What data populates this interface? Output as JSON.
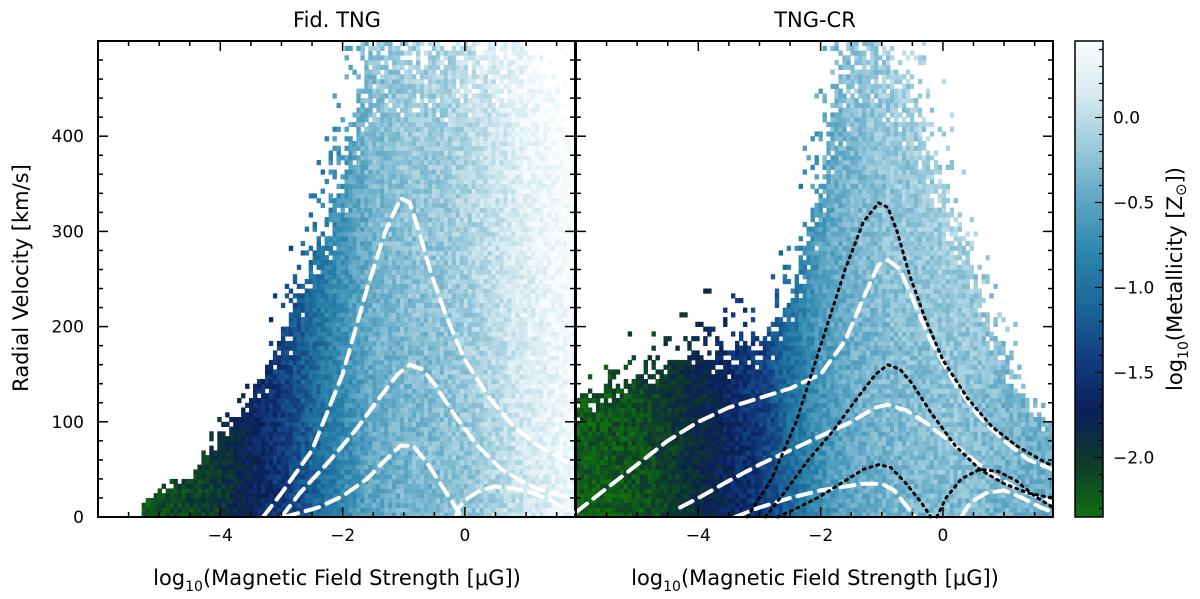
{
  "chart_data": [
    {
      "type": "heatmap",
      "title": "Fid. TNG",
      "xlabel_prefix": "log",
      "xlabel_sub": "10",
      "xlabel_rest": "(Magnetic Field Strength [μG])",
      "ylabel": "Radial Velocity [km/s]",
      "xlim": [
        -6,
        1.8
      ],
      "ylim": [
        0,
        500
      ],
      "xticks": [
        -4,
        -2,
        0
      ],
      "xtick_labels": [
        "−4",
        "−2",
        "0"
      ],
      "yticks": [
        0,
        100,
        200,
        300,
        400
      ],
      "ytick_labels": [
        "0",
        "100",
        "200",
        "300",
        "400"
      ],
      "metallicity_ridge": {
        "x": [
          -5.2,
          -4,
          -3,
          -2,
          -1.5,
          -1,
          -0.5,
          0,
          0.5,
          1,
          1.8
        ],
        "log_Z": [
          -2.2,
          -2.0,
          -1.5,
          -0.8,
          -0.5,
          -0.4,
          -0.35,
          -0.25,
          -0.1,
          0.1,
          0.35
        ]
      },
      "distribution_envelope": {
        "x": [
          -5.3,
          -4.5,
          -4,
          -3.5,
          -3,
          -2.5,
          -2,
          -1.7,
          -1.5,
          -1.2,
          -1,
          -0.5,
          0,
          0.5,
          1,
          1.5,
          1.8
        ],
        "upper_velocity": [
          15,
          40,
          85,
          120,
          190,
          270,
          360,
          460,
          500,
          500,
          500,
          500,
          500,
          500,
          500,
          440,
          380
        ]
      },
      "contours": [
        {
          "style": "dashed",
          "color": "#ffffff",
          "x": [
            -3.3,
            -3.0,
            -2.5,
            -2.0,
            -1.6,
            -1.3,
            -1.05,
            -0.9,
            -0.75,
            -0.55,
            -0.3,
            0.0,
            0.4,
            0.8,
            1.2,
            1.6,
            1.75
          ],
          "y": [
            0,
            25,
            70,
            150,
            240,
            300,
            335,
            330,
            300,
            255,
            210,
            165,
            125,
            95,
            75,
            60,
            55
          ]
        },
        {
          "style": "dashed",
          "color": "#ffffff",
          "x": [
            -3.0,
            -2.7,
            -2.2,
            -1.8,
            -1.4,
            -1.1,
            -0.9,
            -0.7,
            -0.5,
            -0.2,
            0.2,
            0.6,
            1.0,
            1.4,
            1.8
          ],
          "y": [
            0,
            25,
            60,
            90,
            125,
            150,
            160,
            155,
            140,
            110,
            75,
            50,
            35,
            25,
            20
          ]
        },
        {
          "style": "dashed",
          "color": "#ffffff",
          "x": [
            -2.95,
            -2.4,
            -2.0,
            -1.6,
            -1.3,
            -1.05,
            -0.85,
            -0.6,
            -0.35,
            -0.15,
            -0.05
          ],
          "y": [
            0,
            10,
            22,
            40,
            60,
            75,
            75,
            55,
            30,
            10,
            0
          ]
        },
        {
          "style": "dashed",
          "color": "#ffffff",
          "x": [
            -0.15,
            -0.1,
            0.05,
            0.25,
            0.5,
            0.8,
            1.1,
            1.4,
            1.6,
            1.8
          ],
          "y": [
            0,
            10,
            20,
            28,
            32,
            30,
            25,
            18,
            10,
            5
          ]
        }
      ]
    },
    {
      "type": "heatmap",
      "title": "TNG-CR",
      "xlabel_prefix": "log",
      "xlabel_sub": "10",
      "xlabel_rest": "(Magnetic Field Strength [μG])",
      "xlim": [
        -6,
        1.8
      ],
      "ylim": [
        0,
        500
      ],
      "xticks": [
        -4,
        -2,
        0
      ],
      "xtick_labels": [
        "−4",
        "−2",
        "0"
      ],
      "metallicity_ridge": {
        "x": [
          -6,
          -5,
          -4,
          -3,
          -2.5,
          -2,
          -1.5,
          -1,
          -0.5,
          0,
          0.5,
          1,
          1.8
        ],
        "log_Z": [
          -2.3,
          -2.2,
          -1.9,
          -1.5,
          -1.1,
          -0.7,
          -0.5,
          -0.4,
          -0.35,
          -0.3,
          -0.3,
          -0.4,
          -0.45
        ]
      },
      "distribution_envelope": {
        "x": [
          -6,
          -5,
          -4,
          -3.5,
          -3,
          -2.5,
          -2,
          -1.7,
          -1.5,
          -1.2,
          -1,
          -0.5,
          0,
          0.5,
          1,
          1.5,
          1.8
        ],
        "upper_velocity": [
          120,
          150,
          175,
          175,
          185,
          230,
          350,
          470,
          500,
          500,
          500,
          450,
          350,
          260,
          170,
          110,
          95
        ]
      },
      "contours": [
        {
          "style": "dashed",
          "color": "#ffffff",
          "x": [
            -6.0,
            -5.5,
            -5.0,
            -4.5,
            -4.0,
            -3.5,
            -3.0,
            -2.5,
            -2.0,
            -1.6,
            -1.3,
            -1.05,
            -0.9,
            -0.7,
            -0.5,
            -0.2,
            0.2,
            0.6,
            1.0,
            1.4,
            1.8
          ],
          "y": [
            5,
            30,
            55,
            80,
            100,
            115,
            125,
            135,
            150,
            185,
            230,
            265,
            270,
            260,
            230,
            185,
            140,
            105,
            80,
            60,
            50
          ]
        },
        {
          "style": "dashed",
          "color": "#ffffff",
          "x": [
            -4.3,
            -4.0,
            -3.5,
            -3.0,
            -2.5,
            -2.0,
            -1.5,
            -1.1,
            -0.9,
            -0.6,
            -0.3,
            0.0,
            0.4,
            0.8,
            1.2,
            1.6,
            1.8
          ],
          "y": [
            10,
            20,
            38,
            55,
            70,
            85,
            100,
            115,
            118,
            112,
            100,
            85,
            65,
            45,
            30,
            20,
            15
          ]
        },
        {
          "style": "dashed",
          "color": "#ffffff",
          "x": [
            -3.4,
            -3.0,
            -2.5,
            -2.0,
            -1.6,
            -1.3,
            -1.0,
            -0.8,
            -0.6,
            -0.45
          ],
          "y": [
            0,
            10,
            20,
            28,
            32,
            35,
            35,
            28,
            12,
            0
          ]
        },
        {
          "style": "dashed",
          "color": "#ffffff",
          "x": [
            0.3,
            0.45,
            0.7,
            1.0,
            1.3,
            1.6,
            1.8
          ],
          "y": [
            0,
            15,
            25,
            28,
            20,
            10,
            5
          ]
        },
        {
          "style": "dotted",
          "color": "#000000",
          "x": [
            -3.2,
            -2.8,
            -2.4,
            -2.0,
            -1.6,
            -1.3,
            -1.05,
            -0.9,
            -0.75,
            -0.55,
            -0.3,
            0.0,
            0.4,
            0.8,
            1.2,
            1.6,
            1.75
          ],
          "y": [
            0,
            40,
            100,
            180,
            260,
            310,
            330,
            325,
            300,
            255,
            210,
            165,
            125,
            95,
            75,
            60,
            55
          ]
        },
        {
          "style": "dotted",
          "color": "#000000",
          "x": [
            -2.9,
            -2.6,
            -2.2,
            -1.8,
            -1.4,
            -1.1,
            -0.9,
            -0.7,
            -0.5,
            -0.2,
            0.2,
            0.6,
            1.0,
            1.4,
            1.8
          ],
          "y": [
            0,
            25,
            60,
            90,
            125,
            150,
            160,
            155,
            140,
            110,
            75,
            50,
            35,
            25,
            20
          ]
        },
        {
          "style": "dotted",
          "color": "#000000",
          "x": [
            -2.7,
            -2.3,
            -2.0,
            -1.6,
            -1.3,
            -1.05,
            -0.85,
            -0.6,
            -0.35,
            -0.2
          ],
          "y": [
            0,
            12,
            22,
            38,
            50,
            55,
            52,
            35,
            15,
            0
          ]
        },
        {
          "style": "dotted",
          "color": "#000000",
          "x": [
            -0.1,
            0.05,
            0.3,
            0.6,
            0.9,
            1.2,
            1.5,
            1.8
          ],
          "y": [
            0,
            20,
            40,
            50,
            48,
            38,
            22,
            10
          ]
        }
      ]
    }
  ],
  "colorbar": {
    "label_prefix": "log",
    "label_sub": "10",
    "label_main": "(Metallicity [Z",
    "label_sun": "⊙",
    "label_close": "])",
    "range": [
      -2.35,
      0.45
    ],
    "ticks": [
      0.0,
      -0.5,
      -1.0,
      -1.5,
      -2.0
    ],
    "tick_labels": [
      "0.0",
      "−0.5",
      "−1.0",
      "−1.5",
      "−2.0"
    ],
    "colormap": [
      "#107010",
      "#0f3b2b",
      "#0a1f58",
      "#123d80",
      "#1b6799",
      "#2d86ad",
      "#5ea6c4",
      "#9ccbdc",
      "#d7ebf1",
      "#f8fcfd"
    ]
  }
}
